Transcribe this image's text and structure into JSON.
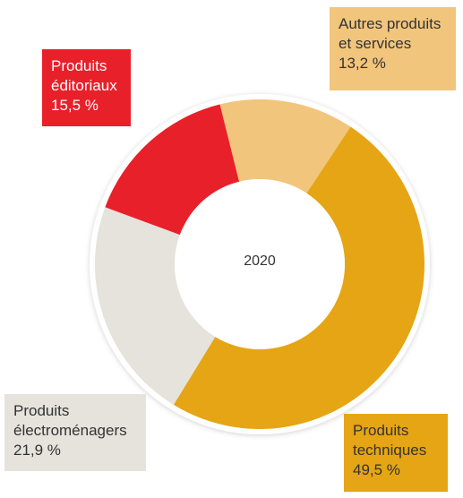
{
  "chart_data": {
    "type": "donut",
    "center_label": "2020",
    "categories": [
      "Autres produits et services",
      "Produits techniques",
      "Produits électroménagers",
      "Produits éditoriaux"
    ],
    "values": [
      13.2,
      49.5,
      21.9,
      15.5
    ],
    "value_labels": [
      "13,2 %",
      "49,5 %",
      "21,9 %",
      "15,5 %"
    ],
    "colors": [
      "#f2c57c",
      "#e6a514",
      "#e6e2dc",
      "#e8202a"
    ]
  }
}
